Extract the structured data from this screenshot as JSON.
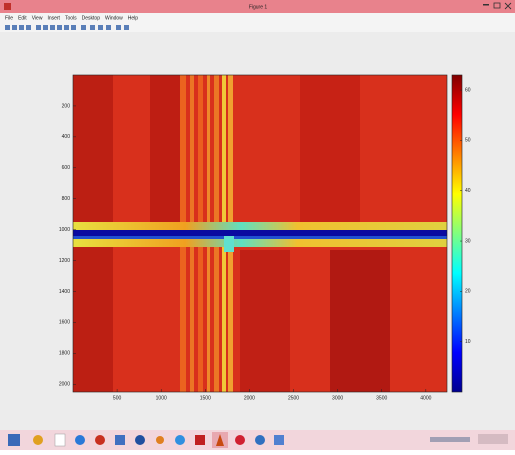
{
  "window": {
    "title": "Figure 1"
  },
  "menu": [
    "File",
    "Edit",
    "View",
    "Insert",
    "Tools",
    "Desktop",
    "Window",
    "Help"
  ],
  "axes": {
    "xlim": [
      0,
      4240
    ],
    "ylim": [
      0,
      2050
    ],
    "xticks": [
      500,
      1000,
      1500,
      2000,
      2500,
      3000,
      3500,
      4000
    ],
    "yticks": [
      200,
      400,
      600,
      800,
      1000,
      1200,
      1400,
      1600,
      1800,
      2000
    ]
  },
  "colorbar": {
    "lim": [
      0,
      63
    ],
    "ticks": [
      10,
      20,
      30,
      40,
      50,
      60
    ]
  }
}
